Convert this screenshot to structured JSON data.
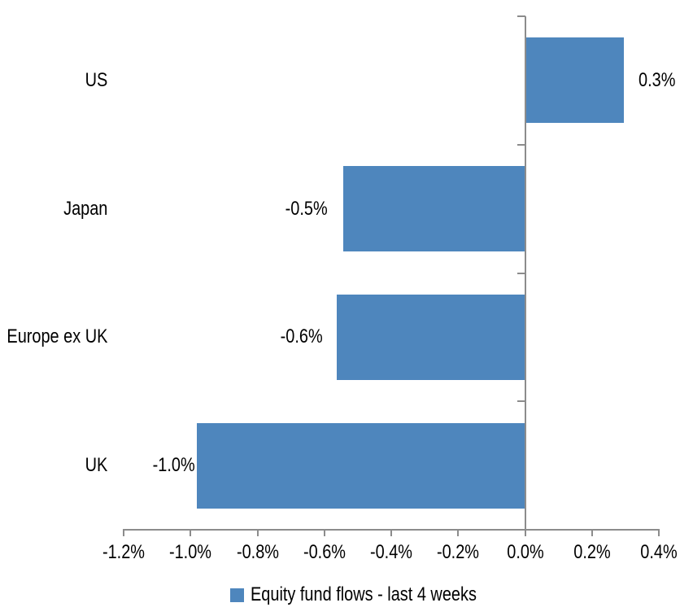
{
  "chart_data": {
    "type": "bar",
    "orientation": "horizontal",
    "categories": [
      "US",
      "Japan",
      "Europe ex UK",
      "UK"
    ],
    "values": [
      0.3,
      -0.5,
      -0.6,
      -1.0
    ],
    "values_precise": [
      0.295,
      -0.543,
      -0.563,
      -0.981
    ],
    "data_labels": [
      "0.3%",
      "-0.5%",
      "-0.6%",
      "-1.0%"
    ],
    "unit": "%",
    "x_axis": {
      "min": -1.2,
      "max": 0.4,
      "step": 0.2,
      "tick_labels": [
        "-1.2%",
        "-1.0%",
        "-0.8%",
        "-0.6%",
        "-0.4%",
        "-0.2%",
        "0.0%",
        "0.2%",
        "0.4%"
      ]
    },
    "grid": false,
    "legend": {
      "position": "bottom",
      "label": "Equity fund flows - last 4 weeks"
    },
    "colors": {
      "bar": "#4E86BD",
      "axis": "#8C8C8C",
      "text": "#000000",
      "background": "#FFFFFF"
    }
  }
}
